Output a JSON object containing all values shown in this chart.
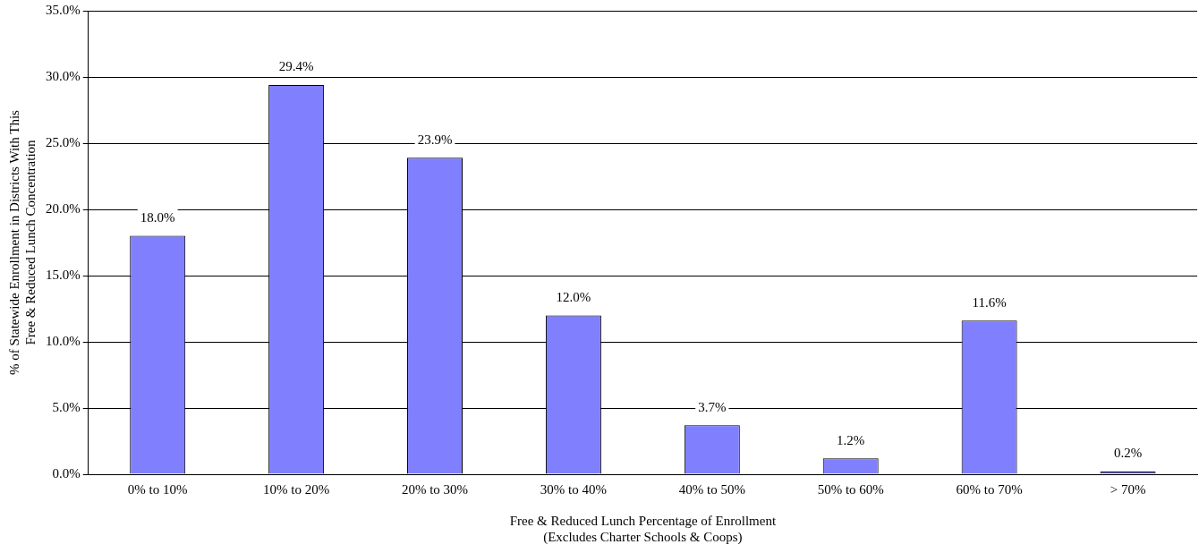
{
  "chart_data": {
    "type": "bar",
    "xlabel": "Free & Reduced Lunch Percentage of Enrollment\n(Excludes Charter Schools & Coops)",
    "ylabel": "% of Statewide Enrollment in Districts With This\nFree & Reduced Lunch Concentration",
    "categories": [
      "0% to 10%",
      "10% to 20%",
      "20% to 30%",
      "30% to 40%",
      "40% to 50%",
      "50% to 60%",
      "60% to 70%",
      "> 70%"
    ],
    "values": [
      18.0,
      29.4,
      23.9,
      12.0,
      3.7,
      1.2,
      11.6,
      0.2
    ],
    "value_labels": [
      "18.0%",
      "29.4%",
      "23.9%",
      "12.0%",
      "3.7%",
      "1.2%",
      "11.6%",
      "0.2%"
    ],
    "color": "#8080ff",
    "ylim": [
      0,
      35
    ],
    "yticks": [
      {
        "value": 0,
        "label": "0.0%"
      },
      {
        "value": 5,
        "label": "5.0%"
      },
      {
        "value": 10,
        "label": "10.0%"
      },
      {
        "value": 15,
        "label": "15.0%"
      },
      {
        "value": 20,
        "label": "20.0%"
      },
      {
        "value": 25,
        "label": "25.0%"
      },
      {
        "value": 30,
        "label": "30.0%"
      },
      {
        "value": 35,
        "label": "35.0%"
      }
    ],
    "grid": "y",
    "legend": false
  }
}
